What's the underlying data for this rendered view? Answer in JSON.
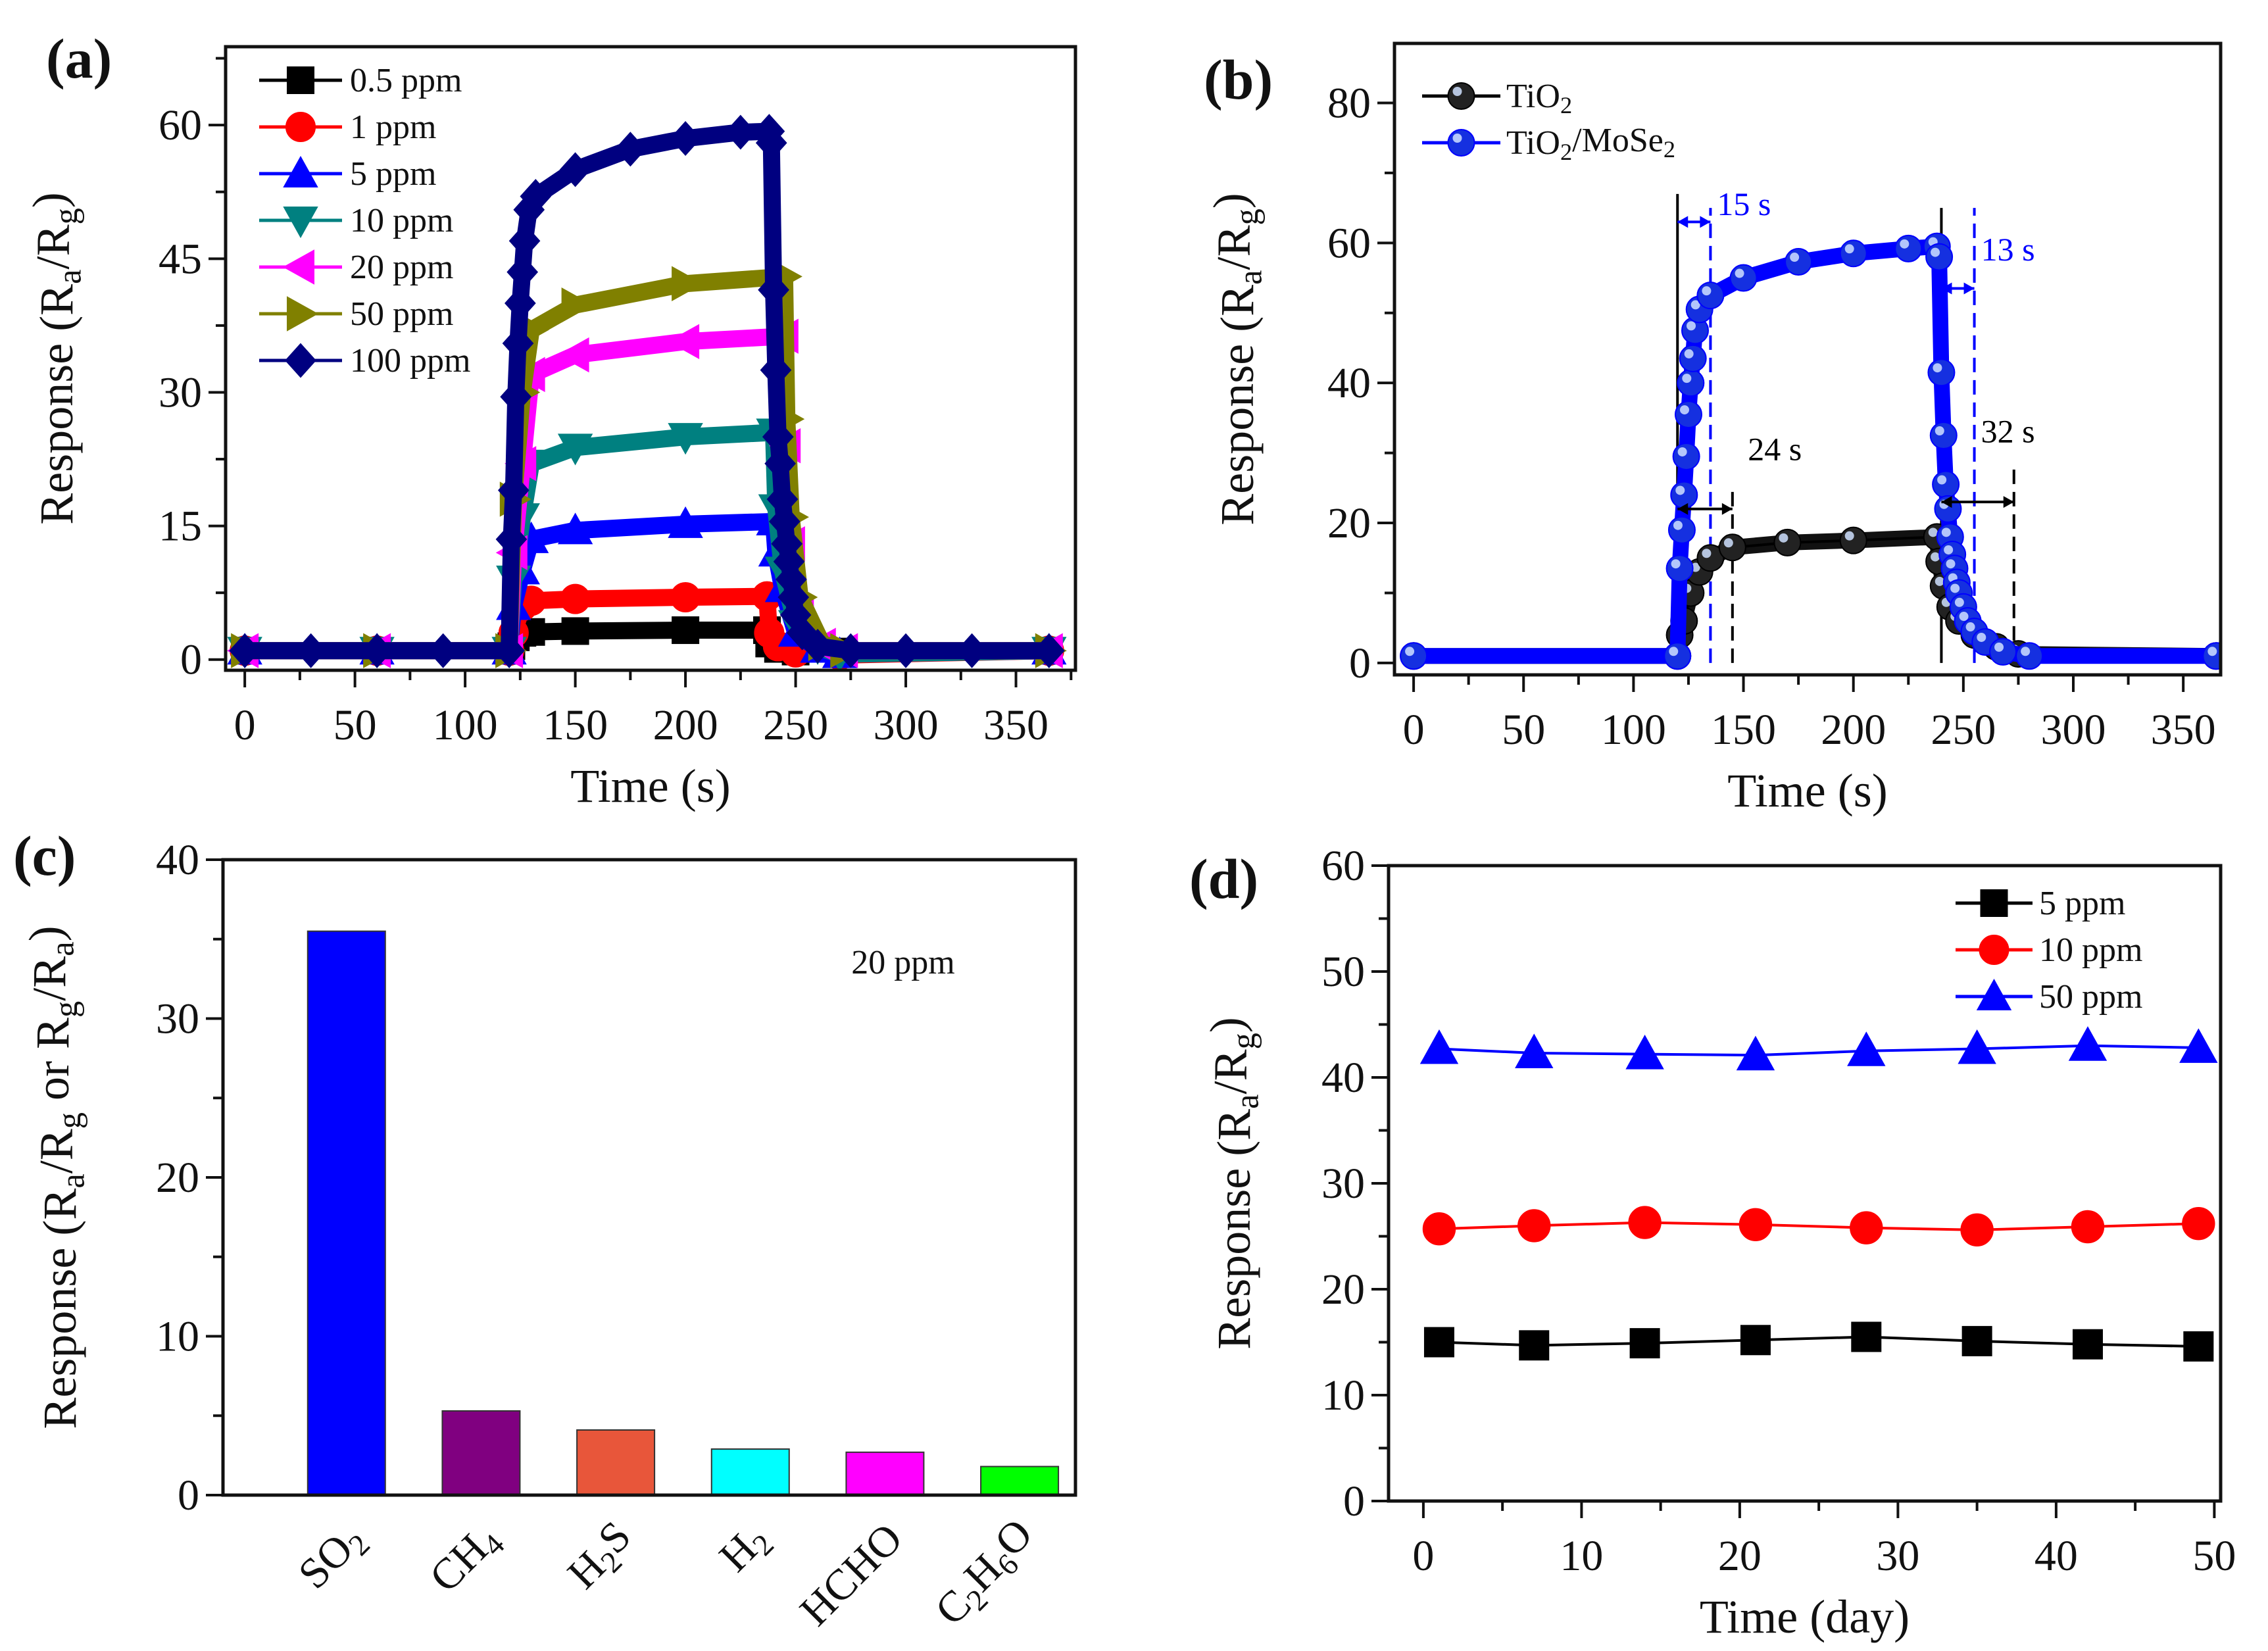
{
  "chart_data": [
    {
      "panel_label": "(a)",
      "type": "line",
      "xlabel": [
        "Time (s)"
      ],
      "ylabel": [
        "Response (R",
        {
          "sub": "a"
        },
        "/R",
        {
          "sub": "g"
        },
        ")"
      ],
      "xlim": [
        -8.7,
        377
      ],
      "ylim": [
        -1.2,
        68.8
      ],
      "xticks": [
        0,
        50,
        100,
        150,
        200,
        250,
        300,
        350
      ],
      "yticks": [
        0,
        15,
        30,
        45,
        60
      ],
      "xminor": 25,
      "yminor": 7.5,
      "grid": false,
      "legend_placement": "top-left",
      "series": [
        {
          "name": "0.5 ppm",
          "color": "#000000",
          "marker": "square",
          "points": [
            [
              0,
              1
            ],
            [
              60,
              1
            ],
            [
              120,
              1
            ],
            [
              121,
              1.5
            ],
            [
              123,
              2.5
            ],
            [
              126,
              3
            ],
            [
              130,
              3.1
            ],
            [
              150,
              3.2
            ],
            [
              200,
              3.3
            ],
            [
              237,
              3.3
            ],
            [
              238,
              1.8
            ],
            [
              242,
              1.2
            ],
            [
              250,
              0.9
            ],
            [
              270,
              0.9
            ],
            [
              365,
              1
            ]
          ]
        },
        {
          "name": "1 ppm",
          "color": "#ff0000",
          "marker": "circle",
          "points": [
            [
              0,
              1
            ],
            [
              60,
              1
            ],
            [
              120,
              1
            ],
            [
              122,
              3
            ],
            [
              126,
              6
            ],
            [
              130,
              6.6
            ],
            [
              150,
              6.8
            ],
            [
              200,
              7
            ],
            [
              237,
              7.1
            ],
            [
              238,
              3
            ],
            [
              242,
              1.5
            ],
            [
              250,
              0.8
            ],
            [
              270,
              0.5
            ],
            [
              365,
              1
            ]
          ]
        },
        {
          "name": "5 ppm",
          "color": "#0000ff",
          "marker": "triangle-up",
          "points": [
            [
              0,
              1
            ],
            [
              60,
              1
            ],
            [
              120,
              1
            ],
            [
              122,
              6
            ],
            [
              126,
              10
            ],
            [
              130,
              13.5
            ],
            [
              150,
              14.5
            ],
            [
              200,
              15.2
            ],
            [
              240,
              15.5
            ],
            [
              241,
              12
            ],
            [
              244,
              8
            ],
            [
              250,
              3
            ],
            [
              260,
              1.2
            ],
            [
              270,
              0.6
            ],
            [
              365,
              1
            ]
          ]
        },
        {
          "name": "10 ppm",
          "color": "#008080",
          "marker": "triangle-down",
          "points": [
            [
              0,
              1
            ],
            [
              60,
              1
            ],
            [
              120,
              1
            ],
            [
              122,
              9
            ],
            [
              126,
              16
            ],
            [
              130,
              22
            ],
            [
              150,
              23.8
            ],
            [
              200,
              25
            ],
            [
              240,
              25.5
            ],
            [
              241,
              17
            ],
            [
              244,
              10
            ],
            [
              250,
              4
            ],
            [
              260,
              1.4
            ],
            [
              270,
              0.6
            ],
            [
              365,
              1
            ]
          ]
        },
        {
          "name": "20 ppm",
          "color": "#ff00ff",
          "marker": "triangle-left",
          "points": [
            [
              0,
              1
            ],
            [
              60,
              1
            ],
            [
              120,
              1
            ],
            [
              122,
              12
            ],
            [
              126,
              22
            ],
            [
              130,
              32
            ],
            [
              150,
              34.2
            ],
            [
              200,
              35.7
            ],
            [
              245,
              36.3
            ],
            [
              246,
              24
            ],
            [
              248,
              13
            ],
            [
              252,
              5
            ],
            [
              262,
              1.6
            ],
            [
              272,
              1
            ],
            [
              365,
              1
            ]
          ]
        },
        {
          "name": "50 ppm",
          "color": "#808000",
          "marker": "triangle-right",
          "points": [
            [
              0,
              1
            ],
            [
              60,
              1
            ],
            [
              120,
              1
            ],
            [
              122,
              18
            ],
            [
              126,
              30
            ],
            [
              130,
              37
            ],
            [
              150,
              39.8
            ],
            [
              200,
              42.2
            ],
            [
              245,
              43
            ],
            [
              246,
              27
            ],
            [
              248,
              16
            ],
            [
              252,
              7
            ],
            [
              262,
              1.8
            ],
            [
              272,
              1
            ],
            [
              365,
              1
            ]
          ]
        },
        {
          "name": "100 ppm",
          "color": "#000080",
          "marker": "diamond",
          "points": [
            [
              0,
              1
            ],
            [
              30,
              1
            ],
            [
              60,
              1
            ],
            [
              90,
              1
            ],
            [
              120,
              1
            ],
            [
              121,
              13.5
            ],
            [
              122,
              19
            ],
            [
              123,
              29.5
            ],
            [
              124,
              35.5
            ],
            [
              125,
              40
            ],
            [
              126,
              43.5
            ],
            [
              127,
              47
            ],
            [
              129,
              50.5
            ],
            [
              132,
              52
            ],
            [
              150,
              55
            ],
            [
              175,
              57.3
            ],
            [
              200,
              58.5
            ],
            [
              225,
              59.2
            ],
            [
              238,
              59.3
            ],
            [
              239,
              58
            ],
            [
              240,
              41.5
            ],
            [
              241,
              32.5
            ],
            [
              242,
              25
            ],
            [
              243,
              22
            ],
            [
              244,
              18
            ],
            [
              245,
              15.5
            ],
            [
              246,
              13
            ],
            [
              247,
              11
            ],
            [
              248,
              9
            ],
            [
              249,
              7
            ],
            [
              250,
              5
            ],
            [
              253,
              3
            ],
            [
              260,
              1.5
            ],
            [
              275,
              1
            ],
            [
              300,
              1
            ],
            [
              330,
              1
            ],
            [
              365,
              1
            ]
          ]
        }
      ]
    },
    {
      "panel_label": "(b)",
      "type": "line",
      "xlabel": [
        "Time (s)"
      ],
      "ylabel": [
        "Response (R",
        {
          "sub": "a"
        },
        "/R",
        {
          "sub": "g"
        },
        ")"
      ],
      "xlim": [
        -8.7,
        367
      ],
      "ylim": [
        -1.7,
        88.5
      ],
      "xticks": [
        0,
        50,
        100,
        150,
        200,
        250,
        300,
        350
      ],
      "yticks": [
        0,
        20,
        40,
        60,
        80
      ],
      "xminor": 25,
      "yminor": 10,
      "grid": false,
      "legend_placement": "top-left",
      "series": [
        {
          "name": [
            "TiO",
            {
              "sub": "2"
            }
          ],
          "color": "#000000",
          "marker": "sphere",
          "points": [
            [
              0,
              1
            ],
            [
              120,
              1
            ],
            [
              121,
              4
            ],
            [
              123,
              6
            ],
            [
              126,
              10
            ],
            [
              130,
              13
            ],
            [
              135,
              15
            ],
            [
              145,
              16.5
            ],
            [
              170,
              17.2
            ],
            [
              200,
              17.5
            ],
            [
              238,
              18
            ],
            [
              239,
              14.5
            ],
            [
              241,
              11
            ],
            [
              244,
              8
            ],
            [
              248,
              6
            ],
            [
              255,
              4
            ],
            [
              265,
              2.3
            ],
            [
              275,
              1.3
            ],
            [
              365,
              1
            ]
          ]
        },
        {
          "name": [
            "TiO",
            {
              "sub": "2"
            },
            "/MoSe",
            {
              "sub": "2"
            }
          ],
          "color": "#0000ff",
          "marker": "sphere",
          "points": [
            [
              0,
              1
            ],
            [
              120,
              1
            ],
            [
              121,
              13.5
            ],
            [
              122,
              19
            ],
            [
              123,
              24
            ],
            [
              124,
              29.5
            ],
            [
              125,
              35.5
            ],
            [
              126,
              40
            ],
            [
              127,
              43.5
            ],
            [
              128,
              47.5
            ],
            [
              130,
              50.5
            ],
            [
              135,
              52.5
            ],
            [
              150,
              55
            ],
            [
              175,
              57.3
            ],
            [
              200,
              58.5
            ],
            [
              225,
              59.2
            ],
            [
              238,
              59.5
            ],
            [
              239,
              58
            ],
            [
              240,
              41.5
            ],
            [
              241,
              32.5
            ],
            [
              242,
              25.5
            ],
            [
              243,
              22
            ],
            [
              244,
              18
            ],
            [
              245,
              15.5
            ],
            [
              246,
              13.5
            ],
            [
              247,
              11.5
            ],
            [
              248,
              10
            ],
            [
              250,
              8
            ],
            [
              252,
              6
            ],
            [
              255,
              4.5
            ],
            [
              260,
              3
            ],
            [
              268,
              1.6
            ],
            [
              280,
              1
            ],
            [
              365,
              1
            ]
          ]
        }
      ],
      "annotations": [
        {
          "label": "15 s",
          "color": "#0000ff",
          "from": 120,
          "to": 135,
          "arrow_y": 63,
          "text_x": 138,
          "text_y": 64
        },
        {
          "label": "13 s",
          "color": "#0000ff",
          "from": 240,
          "to": 255,
          "arrow_y": 53.5,
          "text_x": 258,
          "text_y": 57.5
        },
        {
          "label": "24 s",
          "color": "#000000",
          "from": 120,
          "to": 145,
          "arrow_y": 22,
          "text_x": 152,
          "text_y": 29
        },
        {
          "label": "32 s",
          "color": "#000000",
          "from": 240,
          "to": 273,
          "arrow_y": 23,
          "text_x": 258,
          "text_y": 31.5
        }
      ],
      "guide_lines": [
        {
          "x": 120,
          "top": 67,
          "color": "#000000",
          "dashed": false
        },
        {
          "x": 240,
          "top": 65,
          "color": "#000000",
          "dashed": false
        },
        {
          "x": 135,
          "top": 65,
          "color": "#0000ff",
          "dashed": true
        },
        {
          "x": 255,
          "top": 65,
          "color": "#0000ff",
          "dashed": true
        },
        {
          "x": 145,
          "top": 25,
          "color": "#000000",
          "dashed": true
        },
        {
          "x": 273,
          "top": 28,
          "color": "#000000",
          "dashed": true
        }
      ]
    },
    {
      "panel_label": "(c)",
      "type": "bar",
      "ylabel": [
        "Response (R",
        {
          "sub": "a"
        },
        "/R",
        {
          "sub": "g"
        },
        " or R",
        {
          "sub": "g"
        },
        "/R",
        {
          "sub": "a"
        },
        ")"
      ],
      "ylim": [
        0,
        40
      ],
      "yticks": [
        0,
        10,
        20,
        30,
        40
      ],
      "yminor": 5,
      "annotation": "20 ppm",
      "categories": [
        [
          "SO",
          {
            "sub": "2"
          }
        ],
        [
          "CH",
          {
            "sub": "4"
          }
        ],
        [
          "H",
          {
            "sub": "2"
          },
          "S"
        ],
        [
          "H",
          {
            "sub": "2"
          }
        ],
        [
          "HCHO"
        ],
        [
          "C",
          {
            "sub": "2"
          },
          "H",
          {
            "sub": "6"
          },
          "O"
        ]
      ],
      "values": [
        35.5,
        5.3,
        4.1,
        2.9,
        2.7,
        1.8
      ],
      "colors": [
        "#0000ff",
        "#800080",
        "#e8563a",
        "#00ffff",
        "#ff00ff",
        "#00ff00"
      ]
    },
    {
      "panel_label": "(d)",
      "type": "line",
      "xlabel": [
        "Time (day)"
      ],
      "ylabel": [
        "Response (R",
        {
          "sub": "a"
        },
        "/R",
        {
          "sub": "g"
        },
        ")"
      ],
      "xlim": [
        -2.2,
        50.4
      ],
      "ylim": [
        0,
        60
      ],
      "xticks": [
        0,
        10,
        20,
        30,
        40,
        50
      ],
      "yticks": [
        0,
        10,
        20,
        30,
        40,
        50,
        60
      ],
      "xminor": 5,
      "yminor": 5,
      "grid": false,
      "legend_placement": "top-right",
      "x": [
        1,
        7,
        14,
        21,
        28,
        35,
        42,
        49
      ],
      "series": [
        {
          "name": "5 ppm",
          "color": "#000000",
          "marker": "square",
          "values": [
            15.0,
            14.7,
            14.9,
            15.2,
            15.5,
            15.1,
            14.8,
            14.6
          ]
        },
        {
          "name": "10 ppm",
          "color": "#ff0000",
          "marker": "circle",
          "values": [
            25.7,
            26.0,
            26.3,
            26.1,
            25.8,
            25.6,
            25.9,
            26.2
          ]
        },
        {
          "name": "50 ppm",
          "color": "#0000ff",
          "marker": "triangle-up",
          "values": [
            42.7,
            42.3,
            42.2,
            42.1,
            42.5,
            42.7,
            43.0,
            42.8
          ]
        }
      ]
    }
  ]
}
